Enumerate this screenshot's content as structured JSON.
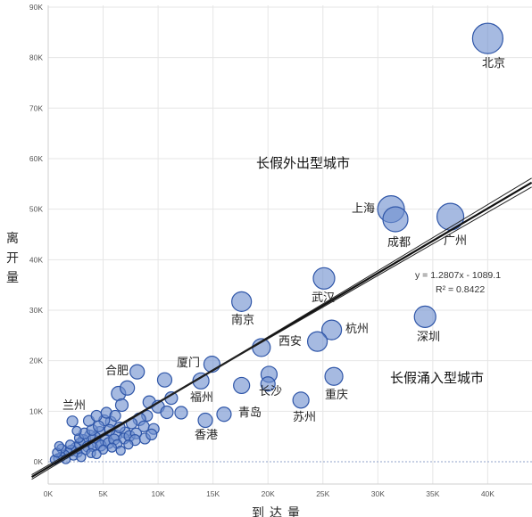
{
  "chart_data": {
    "type": "scatter",
    "xlabel": "到达量",
    "ylabel": "离开量",
    "xlim": [
      0,
      44500
    ],
    "ylim": [
      -1500,
      90000
    ],
    "x_ticks": [
      0,
      5000,
      10000,
      15000,
      20000,
      25000,
      30000,
      35000,
      40000
    ],
    "x_tick_labels": [
      "0K",
      "5K",
      "10K",
      "15K",
      "20K",
      "25K",
      "30K",
      "35K",
      "40K"
    ],
    "y_ticks": [
      0,
      10000,
      20000,
      30000,
      40000,
      50000,
      60000,
      70000,
      80000,
      90000
    ],
    "y_tick_labels": [
      "0K",
      "10K",
      "20K",
      "30K",
      "40K",
      "50K",
      "60K",
      "70K",
      "80K",
      "90K"
    ],
    "grid": true,
    "regression": {
      "slope": 1.2807,
      "intercept": -1089.1,
      "equation": "y = 1.2807x - 1089.1",
      "r2": "R² = 0.8422"
    },
    "region_labels": {
      "outflow": "长假外出型城市",
      "inflow": "长假涌入型城市"
    },
    "points": [
      {
        "label": "北京",
        "x": 40000,
        "y": 83800,
        "size": 17
      },
      {
        "label": "上海",
        "x": 31200,
        "y": 50000,
        "size": 15
      },
      {
        "label": "成都",
        "x": 31600,
        "y": 48000,
        "size": 14
      },
      {
        "label": "广州",
        "x": 36600,
        "y": 48500,
        "size": 15
      },
      {
        "label": "武汉",
        "x": 25100,
        "y": 36300,
        "size": 12
      },
      {
        "label": "南京",
        "x": 17600,
        "y": 31700,
        "size": 11
      },
      {
        "label": "深圳",
        "x": 34300,
        "y": 28700,
        "size": 12
      },
      {
        "label": "杭州",
        "x": 25800,
        "y": 26100,
        "size": 11
      },
      {
        "label": "西安",
        "x": 24500,
        "y": 23800,
        "size": 11
      },
      {
        "label": "",
        "x": 19400,
        "y": 22600,
        "size": 10
      },
      {
        "label": "厦门",
        "x": 14900,
        "y": 19300,
        "size": 9
      },
      {
        "label": "合肥",
        "x": 8100,
        "y": 17800,
        "size": 8
      },
      {
        "label": "",
        "x": 20100,
        "y": 17300,
        "size": 9
      },
      {
        "label": "",
        "x": 26000,
        "y": 16900,
        "size": 10
      },
      {
        "label": "",
        "x": 13900,
        "y": 16000,
        "size": 9
      },
      {
        "label": "福州",
        "x": 17600,
        "y": 15100,
        "size": 9
      },
      {
        "label": "长沙",
        "x": 20000,
        "y": 15400,
        "size": 8
      },
      {
        "label": "重庆",
        "x": 23000,
        "y": 12200,
        "size": 9
      },
      {
        "label": "青岛",
        "x": 16000,
        "y": 9400,
        "size": 8
      },
      {
        "label": "香港",
        "x": 14300,
        "y": 8200,
        "size": 8
      },
      {
        "label": "苏州",
        "x": 0,
        "y": 0,
        "size": 0
      },
      {
        "label": "兰州",
        "x": 2200,
        "y": 8000,
        "size": 6
      }
    ],
    "cluster": [
      [
        6400,
        13500,
        8
      ],
      [
        7200,
        14600,
        8
      ],
      [
        6700,
        11200,
        7
      ],
      [
        9200,
        11800,
        7
      ],
      [
        10600,
        16200,
        8
      ],
      [
        11200,
        12600,
        7
      ],
      [
        10000,
        10900,
        7
      ],
      [
        12100,
        9700,
        7
      ],
      [
        10800,
        9800,
        7
      ],
      [
        9000,
        9100,
        6
      ],
      [
        8300,
        8400,
        7
      ],
      [
        7600,
        7600,
        6
      ],
      [
        8700,
        7000,
        6
      ],
      [
        9600,
        6500,
        6
      ],
      [
        7000,
        5800,
        6
      ],
      [
        6200,
        5200,
        6
      ],
      [
        5700,
        7900,
        6
      ],
      [
        5100,
        8200,
        6
      ],
      [
        5600,
        6300,
        6
      ],
      [
        6500,
        6800,
        6
      ],
      [
        4700,
        5900,
        6
      ],
      [
        4300,
        4800,
        6
      ],
      [
        3800,
        5200,
        6
      ],
      [
        3200,
        4300,
        6
      ],
      [
        2900,
        3600,
        6
      ],
      [
        3600,
        3000,
        6
      ],
      [
        4500,
        3700,
        6
      ],
      [
        5200,
        4200,
        6
      ],
      [
        2500,
        2700,
        6
      ],
      [
        2100,
        2200,
        6
      ],
      [
        1800,
        1900,
        5
      ],
      [
        1500,
        1400,
        5
      ],
      [
        1200,
        1000,
        5
      ],
      [
        900,
        700,
        5
      ],
      [
        600,
        400,
        5
      ],
      [
        2700,
        1800,
        5
      ],
      [
        3400,
        2300,
        5
      ],
      [
        4100,
        2900,
        5
      ],
      [
        4800,
        3200,
        6
      ],
      [
        5500,
        3700,
        6
      ],
      [
        6000,
        4400,
        6
      ],
      [
        6900,
        4600,
        6
      ],
      [
        7400,
        5100,
        6
      ],
      [
        8000,
        5600,
        6
      ],
      [
        7900,
        4300,
        6
      ],
      [
        6300,
        3500,
        5
      ],
      [
        5000,
        2400,
        5
      ],
      [
        3900,
        1700,
        5
      ],
      [
        2300,
        1200,
        5
      ],
      [
        1600,
        500,
        5
      ],
      [
        2000,
        3400,
        5
      ],
      [
        2800,
        4700,
        5
      ],
      [
        3300,
        5600,
        6
      ],
      [
        4000,
        6300,
        6
      ],
      [
        4600,
        7000,
        6
      ],
      [
        1200,
        2600,
        5
      ],
      [
        800,
        1800,
        5
      ],
      [
        3000,
        900,
        5
      ],
      [
        4400,
        1500,
        5
      ],
      [
        5800,
        2800,
        5
      ],
      [
        6600,
        2200,
        5
      ],
      [
        7300,
        3400,
        5
      ],
      [
        8800,
        4600,
        6
      ],
      [
        9400,
        5400,
        6
      ],
      [
        1000,
        3100,
        5
      ],
      [
        3700,
        8100,
        6
      ],
      [
        4400,
        9100,
        6
      ],
      [
        2600,
        6100,
        5
      ],
      [
        5300,
        9700,
        6
      ],
      [
        6100,
        9100,
        6
      ]
    ]
  }
}
